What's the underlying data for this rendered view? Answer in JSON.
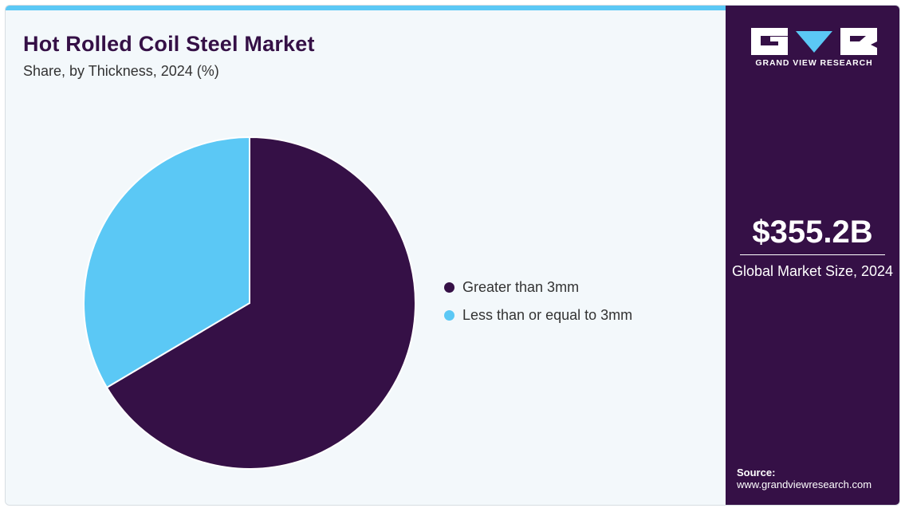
{
  "chart": {
    "title": "Hot Rolled Coil Steel Market",
    "subtitle": "Share, by Thickness, 2024 (%)"
  },
  "chart_data": {
    "type": "pie",
    "title": "Hot Rolled Coil Steel Market",
    "subtitle": "Share, by Thickness, 2024 (%)",
    "slices": [
      {
        "label": "Greater than 3mm",
        "value": 66.5,
        "color": "#351046"
      },
      {
        "label": "Less than or equal to 3mm",
        "value": 33.5,
        "color": "#5bc8f5"
      }
    ],
    "legend_position": "right"
  },
  "brand": {
    "name": "GRAND VIEW RESEARCH",
    "primary_color": "#351046",
    "accent_color": "#5bc8f5"
  },
  "highlight": {
    "value": "$355.2B",
    "label": "Global Market Size, 2024"
  },
  "source": {
    "label": "Source:",
    "url": "www.grandviewresearch.com"
  }
}
